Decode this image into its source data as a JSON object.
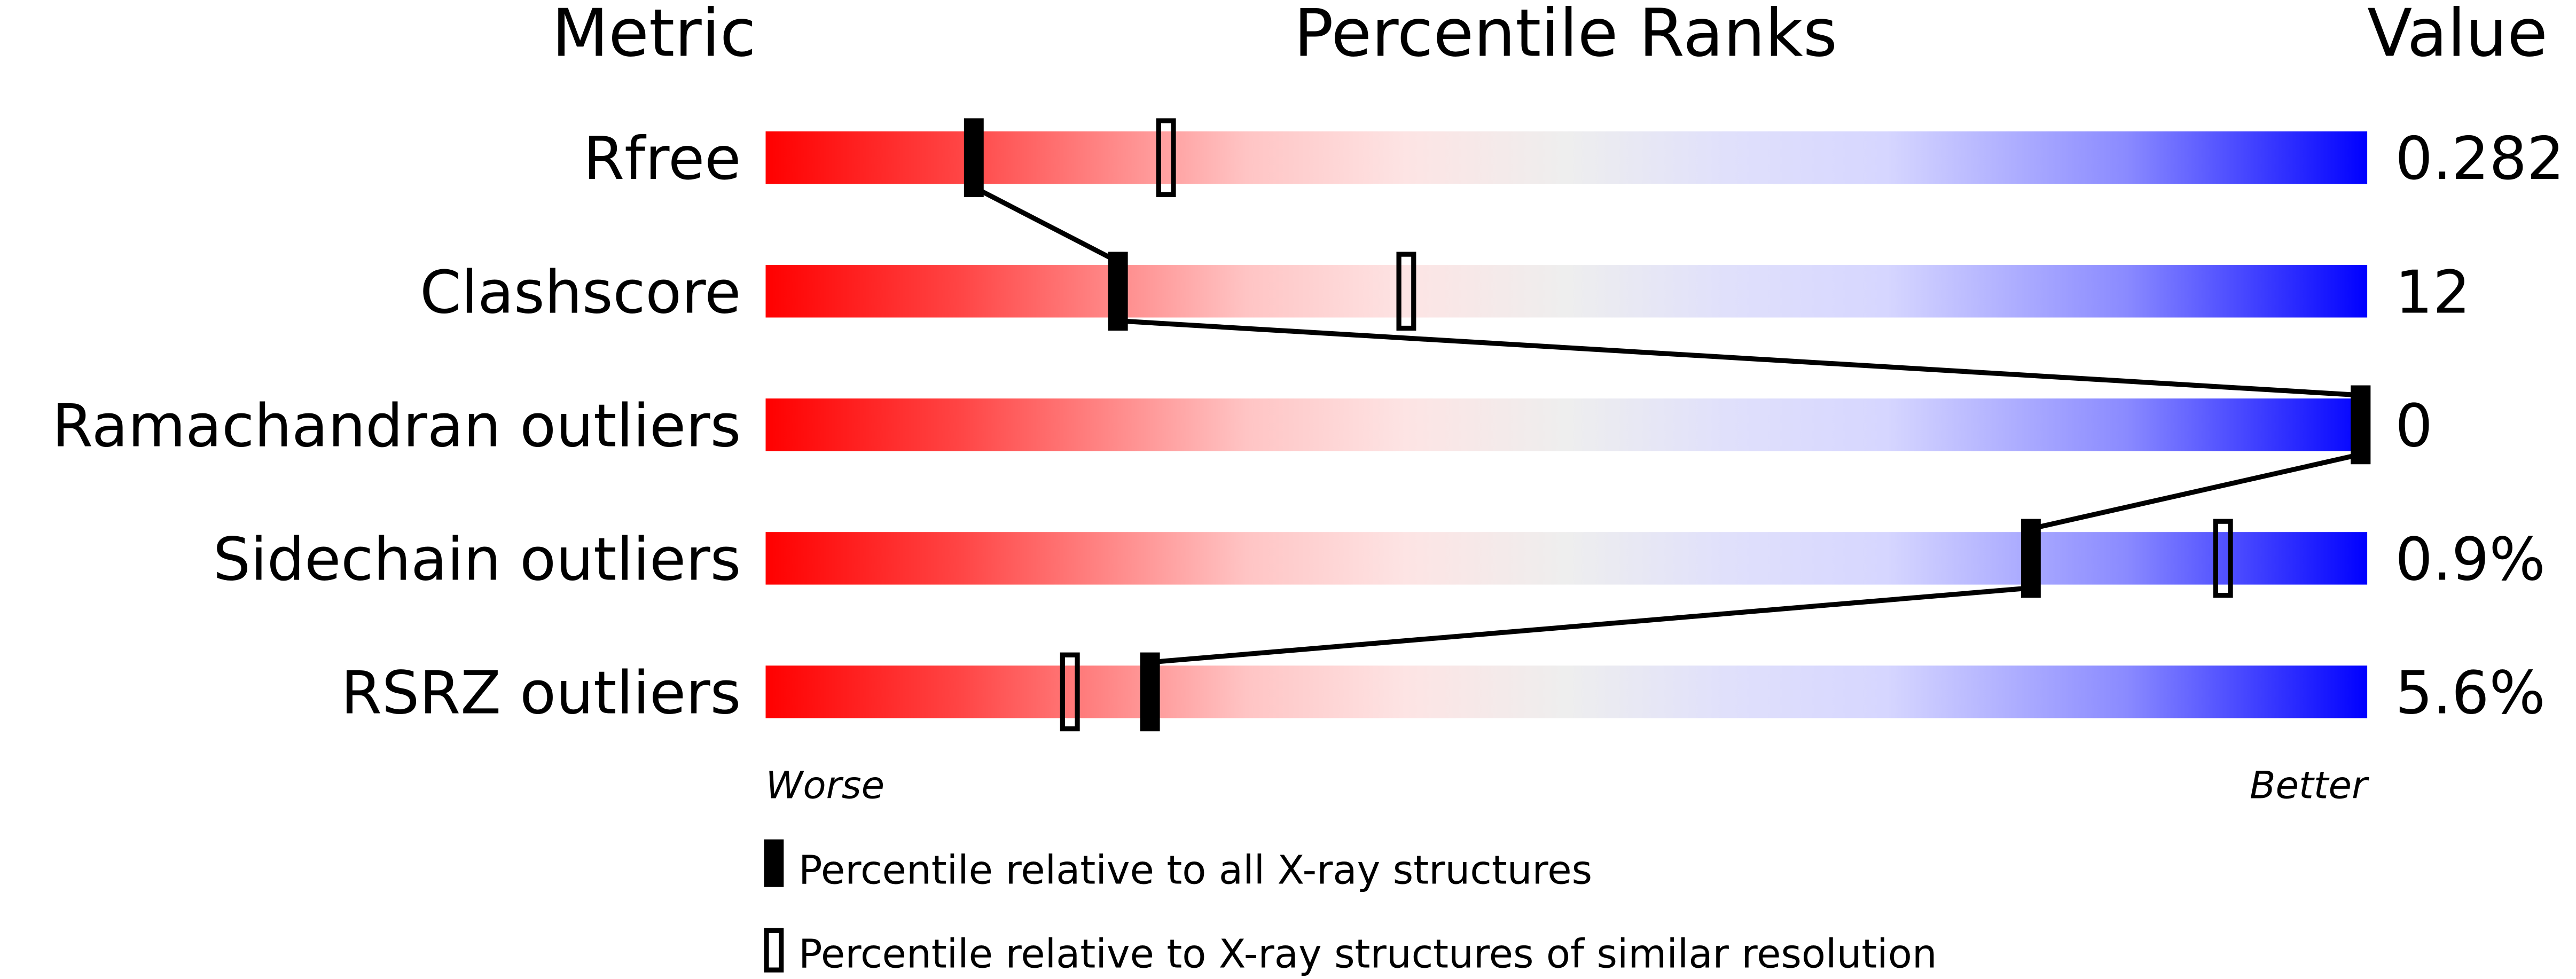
{
  "chart_data": {
    "type": "percentile-bar",
    "headers": {
      "metric": "Metric",
      "ranks": "Percentile Ranks",
      "value": "Value"
    },
    "xlim": [
      0,
      100
    ],
    "rows": [
      {
        "metric": "Rfree",
        "value": "0.282",
        "percentile_all": 13,
        "percentile_similar": 25
      },
      {
        "metric": "Clashscore",
        "value": "12",
        "percentile_all": 22,
        "percentile_similar": 40
      },
      {
        "metric": "Ramachandran outliers",
        "value": "0",
        "percentile_all": 100,
        "percentile_similar": 100
      },
      {
        "metric": "Sidechain outliers",
        "value": "0.9%",
        "percentile_all": 79,
        "percentile_similar": 91
      },
      {
        "metric": "RSRZ outliers",
        "value": "5.6%",
        "percentile_all": 24,
        "percentile_similar": 19
      }
    ],
    "axis": {
      "left": "Worse",
      "right": "Better"
    },
    "legend": [
      {
        "marker": "filled",
        "label": "Percentile relative to all X-ray structures"
      },
      {
        "marker": "open",
        "label": "Percentile relative to X-ray structures of similar resolution"
      }
    ],
    "colors": {
      "worse": "#ff0000",
      "middle": "#eeeeee",
      "better": "#0000ff",
      "marker": "#000000"
    }
  }
}
